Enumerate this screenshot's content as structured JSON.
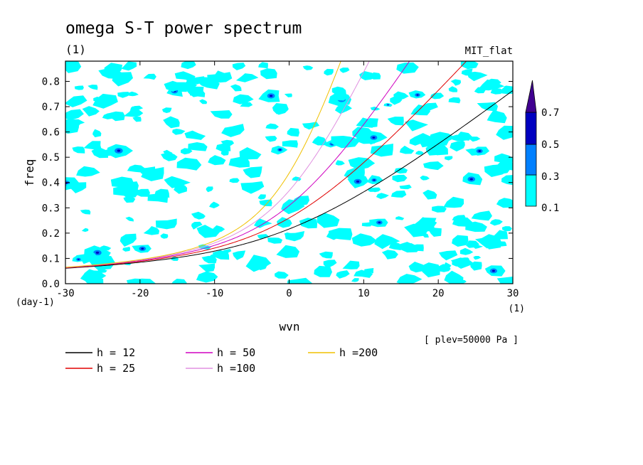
{
  "chart_data": {
    "type": "contour",
    "title": "omega S-T power spectrum",
    "units_label": "(1)",
    "model_label": "MIT_flat",
    "xlabel": "wvn",
    "ylabel": "freq",
    "x_unit": "(1)",
    "y_unit": "(day-1)",
    "xlim": [
      -30,
      30
    ],
    "ylim": [
      0,
      0.88
    ],
    "xticks": [
      "-30",
      "-20",
      "-10",
      "0",
      "10",
      "20",
      "30"
    ],
    "yticks": [
      "0.0",
      "0.1",
      "0.2",
      "0.3",
      "0.4",
      "0.5",
      "0.6",
      "0.7",
      "0.8"
    ],
    "level_note": "[ plev=50000 Pa ]",
    "colorbar": {
      "levels": [
        "0.1",
        "0.3",
        "0.5",
        "0.7"
      ],
      "colors": [
        "#00ffff",
        "#0080ff",
        "#0000c0",
        "#400090"
      ]
    },
    "series": [
      {
        "name": "h = 12",
        "color": "#000000",
        "h": 12
      },
      {
        "name": "h = 25",
        "color": "#e00000",
        "h": 25
      },
      {
        "name": "h = 50",
        "color": "#d000c0",
        "h": 50
      },
      {
        "name": "h =100",
        "color": "#e090e0",
        "h": 100
      },
      {
        "name": "h =200",
        "color": "#f0c000",
        "h": 200
      }
    ]
  }
}
